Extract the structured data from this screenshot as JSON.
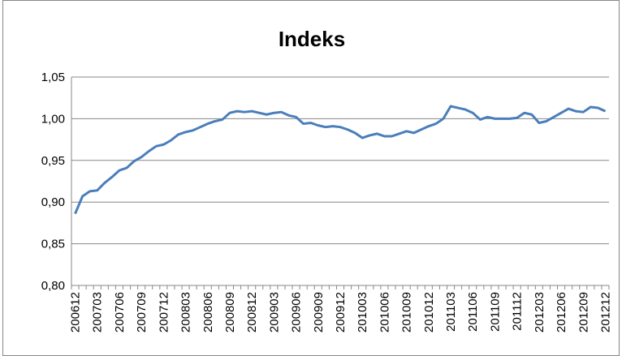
{
  "chart_data": {
    "type": "line",
    "title": "Indeks",
    "categories": [
      "200612",
      null,
      null,
      "200703",
      null,
      null,
      "200706",
      null,
      null,
      "200709",
      null,
      null,
      "200712",
      null,
      null,
      "200803",
      null,
      null,
      "200806",
      null,
      null,
      "200809",
      null,
      null,
      "200812",
      null,
      null,
      "200903",
      null,
      null,
      "200906",
      null,
      null,
      "200909",
      null,
      null,
      "200912",
      null,
      null,
      "201003",
      null,
      null,
      "201006",
      null,
      null,
      "201009",
      null,
      null,
      "201012",
      null,
      null,
      "201103",
      null,
      null,
      "201106",
      null,
      null,
      "201109",
      null,
      null,
      "201112",
      null,
      null,
      "201203",
      null,
      null,
      "201206",
      null,
      null,
      "201209",
      null,
      null,
      "201212"
    ],
    "series": [
      {
        "name": "Indeks",
        "color": "#4a7ebb",
        "values": [
          0.886,
          0.907,
          0.913,
          0.914,
          0.923,
          0.93,
          0.938,
          0.941,
          0.949,
          0.954,
          0.961,
          0.967,
          0.969,
          0.974,
          0.981,
          0.984,
          0.986,
          0.99,
          0.994,
          0.997,
          0.999,
          1.007,
          1.009,
          1.008,
          1.009,
          1.007,
          1.005,
          1.007,
          1.008,
          1.004,
          1.002,
          0.994,
          0.995,
          0.992,
          0.99,
          0.991,
          0.99,
          0.987,
          0.983,
          0.977,
          0.98,
          0.982,
          0.979,
          0.979,
          0.982,
          0.985,
          0.983,
          0.987,
          0.991,
          0.994,
          1.0,
          1.015,
          1.013,
          1.011,
          1.007,
          0.999,
          1.002,
          1.0,
          1.0,
          1.0,
          1.001,
          1.007,
          1.005,
          0.995,
          0.997,
          1.002,
          1.007,
          1.012,
          1.009,
          1.008,
          1.014,
          1.013,
          1.009
        ]
      }
    ],
    "ylim": [
      0.8,
      1.05
    ],
    "yticks": [
      {
        "value": 0.8,
        "label": "0,80"
      },
      {
        "value": 0.85,
        "label": "0,85"
      },
      {
        "value": 0.9,
        "label": "0,90"
      },
      {
        "value": 0.95,
        "label": "0,95"
      },
      {
        "value": 1.0,
        "label": "1,00"
      },
      {
        "value": 1.05,
        "label": "1,05"
      }
    ],
    "grid": true
  }
}
